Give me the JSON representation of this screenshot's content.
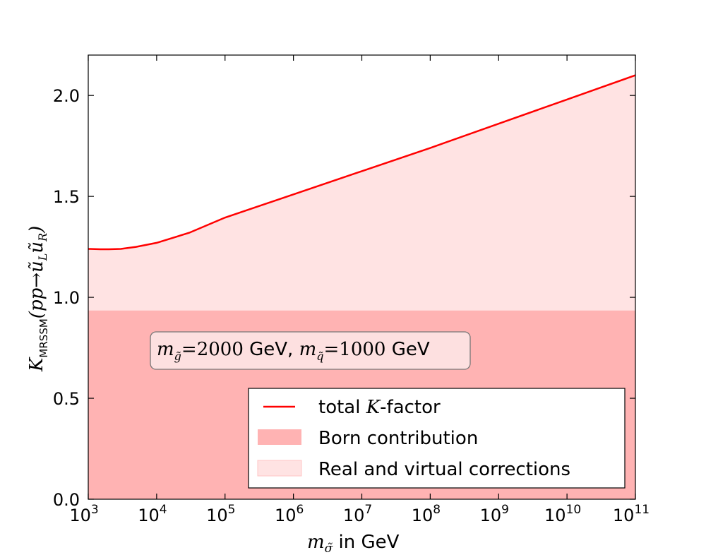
{
  "colors": {
    "line": "#ff0000",
    "born_fill": "#ffb3b3",
    "corr_fill": "#ffe3e3",
    "annotation_fill": "#fde0e0"
  },
  "chart_data": {
    "type": "area",
    "xscale": "log",
    "xlim": [
      1000,
      100000000000
    ],
    "ylim": [
      0.0,
      2.2
    ],
    "grid": false,
    "legend_position": "lower-right",
    "xlabel": {
      "sym": "m",
      "sub": "σ̃",
      "text": " in GeV"
    },
    "ylabel": {
      "sym": "K",
      "sub": "MRSSM",
      "arg_open": "(pp→",
      "u1": "ũ",
      "u1_sub": "L",
      "u2": "ũ",
      "u2_sub": "R",
      "arg_close": ")"
    },
    "x_ticks": [
      {
        "base": "10",
        "exp": "3"
      },
      {
        "base": "10",
        "exp": "4"
      },
      {
        "base": "10",
        "exp": "5"
      },
      {
        "base": "10",
        "exp": "6"
      },
      {
        "base": "10",
        "exp": "7"
      },
      {
        "base": "10",
        "exp": "8"
      },
      {
        "base": "10",
        "exp": "9"
      },
      {
        "base": "10",
        "exp": "10"
      },
      {
        "base": "10",
        "exp": "11"
      }
    ],
    "x_tick_values": [
      1000,
      10000,
      100000,
      1000000,
      10000000,
      100000000,
      1000000000,
      10000000000,
      100000000000
    ],
    "y_ticks": [
      "0.0",
      "0.5",
      "1.0",
      "1.5",
      "2.0"
    ],
    "y_tick_values": [
      0.0,
      0.5,
      1.0,
      1.5,
      2.0
    ],
    "series": [
      {
        "name": "total K-factor",
        "kind": "line",
        "x": [
          1000,
          1500,
          2000,
          3000,
          5000,
          10000,
          30000,
          100000,
          1000000,
          10000000,
          100000000,
          1000000000,
          10000000000,
          100000000000
        ],
        "y": [
          1.24,
          1.238,
          1.238,
          1.24,
          1.25,
          1.27,
          1.32,
          1.395,
          1.51,
          1.625,
          1.74,
          1.86,
          1.98,
          2.1
        ]
      },
      {
        "name": "Born contribution",
        "kind": "band",
        "y0": 0.0,
        "y1": 0.935
      },
      {
        "name": "Real and virtual corrections",
        "kind": "band",
        "y0": 0.935,
        "y1_series": "total K-factor"
      }
    ],
    "legend": [
      {
        "pre": "total ",
        "math": "K",
        "post": "-factor"
      },
      {
        "pre": "Born contribution",
        "math": "",
        "post": ""
      },
      {
        "pre": "Real and virtual corrections",
        "math": "",
        "post": ""
      }
    ],
    "annotation": {
      "g_sym": "m",
      "g_sub": "g̃",
      "g_eq": "=2000",
      "g_unit": " GeV, ",
      "q_sym": "m",
      "q_sub": "q̃",
      "q_eq": "=1000",
      "q_unit": " GeV"
    }
  }
}
